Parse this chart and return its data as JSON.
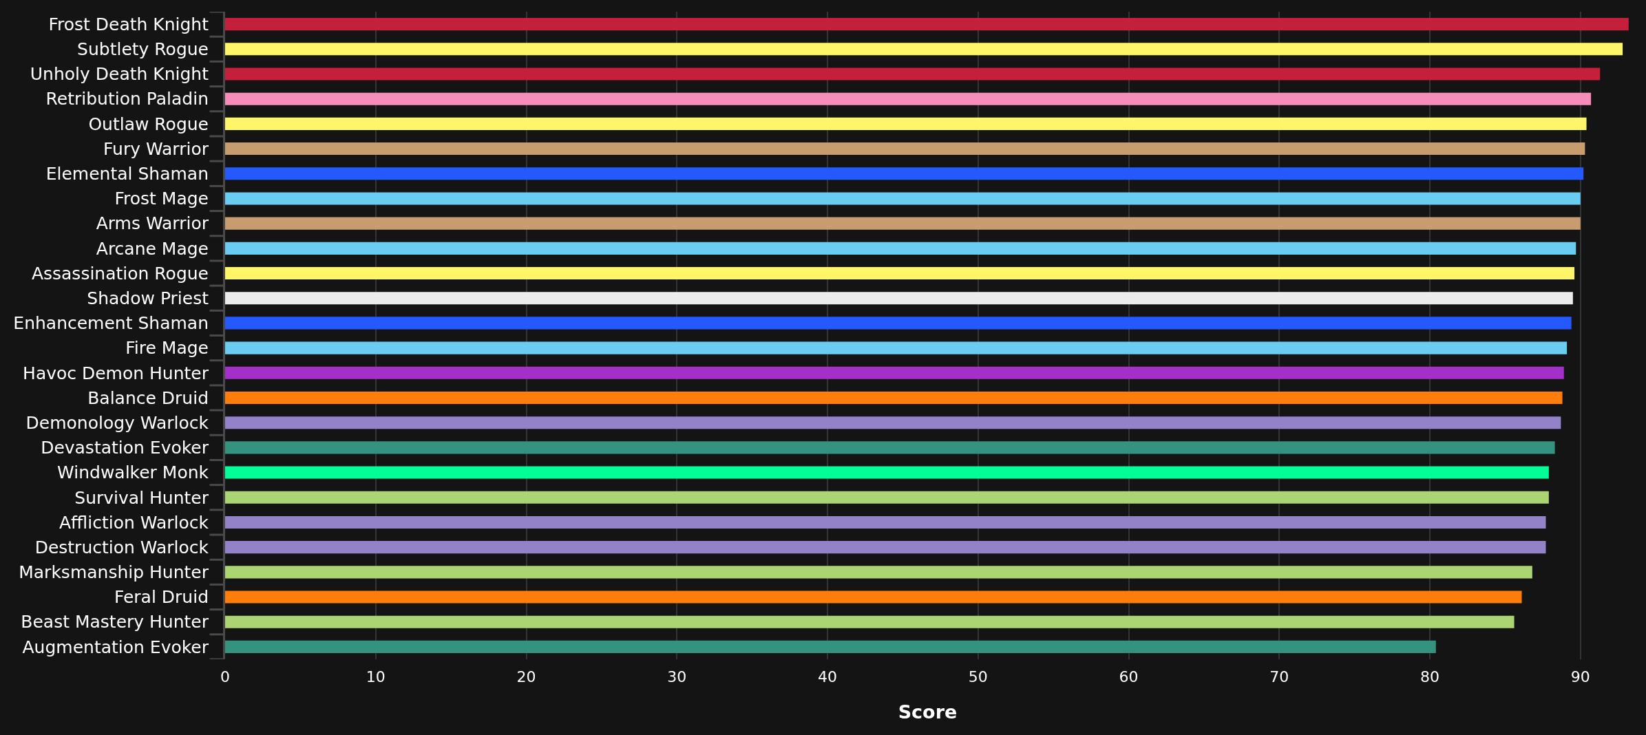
{
  "chart_data": {
    "type": "bar",
    "orientation": "horizontal",
    "xlabel": "Score",
    "categories": [
      "Frost Death Knight",
      "Subtlety Rogue",
      "Unholy Death Knight",
      "Retribution Paladin",
      "Outlaw Rogue",
      "Fury Warrior",
      "Elemental Shaman",
      "Frost Mage",
      "Arms Warrior",
      "Arcane Mage",
      "Assassination Rogue",
      "Shadow Priest",
      "Enhancement Shaman",
      "Fire Mage",
      "Havoc Demon Hunter",
      "Balance Druid",
      "Demonology Warlock",
      "Devastation Evoker",
      "Windwalker Monk",
      "Survival Hunter",
      "Affliction Warlock",
      "Destruction Warlock",
      "Marksmanship Hunter",
      "Feral Druid",
      "Beast Mastery Hunter",
      "Augmentation Evoker"
    ],
    "values": [
      93.2,
      92.8,
      91.3,
      90.7,
      90.4,
      90.3,
      90.2,
      90.0,
      90.0,
      89.7,
      89.6,
      89.5,
      89.4,
      89.1,
      88.9,
      88.8,
      88.7,
      88.3,
      87.9,
      87.9,
      87.7,
      87.7,
      86.8,
      86.1,
      85.6,
      80.4
    ],
    "colors": [
      "#c41f3b",
      "#fff569",
      "#c41f3b",
      "#f58cba",
      "#fff569",
      "#c79c6e",
      "#2459ff",
      "#69ccf0",
      "#c79c6e",
      "#69ccf0",
      "#fff569",
      "#ececec",
      "#2459ff",
      "#69ccf0",
      "#a330c9",
      "#ff7d0a",
      "#9482c9",
      "#33937f",
      "#00ff96",
      "#abd473",
      "#9482c9",
      "#9482c9",
      "#abd473",
      "#ff7d0a",
      "#abd473",
      "#33937f"
    ],
    "xlim": [
      0,
      93.3
    ],
    "xticks": [
      0,
      10,
      20,
      30,
      40,
      50,
      60,
      70,
      80,
      90
    ],
    "grid": "x"
  }
}
